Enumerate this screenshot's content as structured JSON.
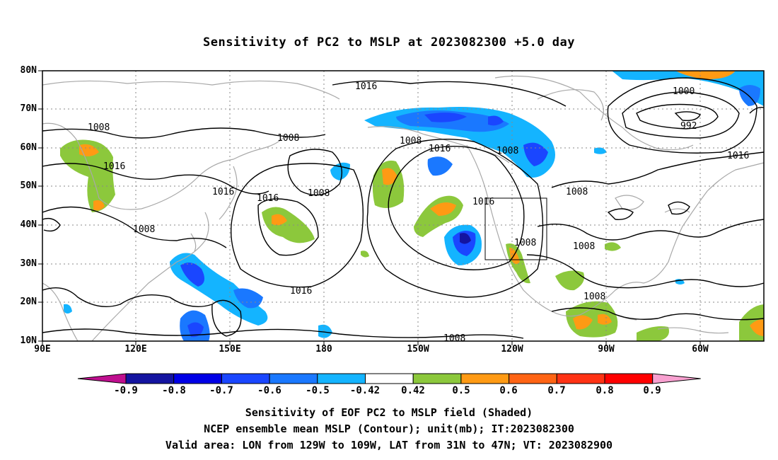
{
  "title": "Sensitivity of PC2 to MSLP at 2023082300 +5.0 day",
  "lat_labels": [
    "80N",
    "70N",
    "60N",
    "50N",
    "40N",
    "30N",
    "20N",
    "10N"
  ],
  "lon_labels": [
    "90E",
    "120E",
    "150E",
    "180",
    "150W",
    "120W",
    "90W",
    "60W"
  ],
  "colorbar": {
    "labels": [
      "-0.9",
      "-0.8",
      "-0.7",
      "-0.6",
      "-0.5",
      "-0.42",
      "0.42",
      "0.5",
      "0.6",
      "0.7",
      "0.8",
      "0.9"
    ],
    "colors": [
      "#bf0f8f",
      "#1414a0",
      "#0000e6",
      "#1a46ff",
      "#1a78ff",
      "#14b4ff",
      "#ffffff",
      "#8cc83c",
      "#ff9a14",
      "#ff6414",
      "#ff3214",
      "#ff0000",
      "#f8a0d0"
    ]
  },
  "contour_labels": [
    "1016",
    "1008",
    "1008",
    "1016",
    "1016",
    "1016",
    "1008",
    "1016",
    "1008",
    "1016",
    "1008",
    "1016",
    "1008",
    "1008",
    "1008",
    "1008",
    "1008",
    "1000",
    "992",
    "1016",
    "1008"
  ],
  "captions": [
    "Sensitivity of EOF PC2 to MSLP field (Shaded)",
    "NCEP ensemble mean MSLP (Contour); unit(mb); IT:2023082300",
    "Valid area: LON from 129W to 109W, LAT from 31N to 47N; VT: 2023082900"
  ],
  "map_colors": {
    "coast": "#a8a8a8",
    "contour": "#000000",
    "grid": "#888888"
  }
}
